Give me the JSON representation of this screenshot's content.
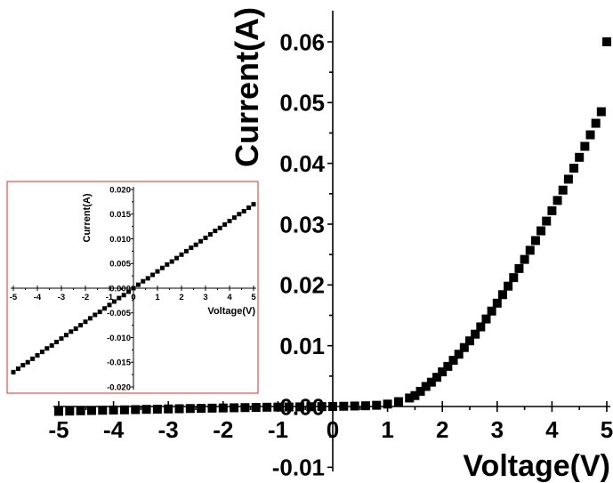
{
  "chart_data": [
    {
      "id": "main",
      "type": "scatter",
      "xlabel": "Voltage(V)",
      "ylabel": "Current(A)",
      "xlim": [
        -5,
        5
      ],
      "ylim": [
        -0.01,
        0.065
      ],
      "xticks": [
        -5,
        -4,
        -3,
        -2,
        -1,
        0,
        1,
        2,
        3,
        4,
        5
      ],
      "xtick_labels": [
        "-5",
        "-4",
        "-3",
        "-2",
        "-1",
        "0",
        "1",
        "2",
        "3",
        "4",
        "5"
      ],
      "yticks": [
        -0.01,
        0.0,
        0.01,
        0.02,
        0.03,
        0.04,
        0.05,
        0.06
      ],
      "ytick_labels": [
        "-0.01",
        "0.00",
        "0.01",
        "0.02",
        "0.03",
        "0.04",
        "0.05",
        "0.06"
      ],
      "marker": "square",
      "marker_color": "#000000",
      "grid": false,
      "series": [
        {
          "x": [
            -5.0,
            -4.8,
            -4.6,
            -4.4,
            -4.2,
            -4.0,
            -3.8,
            -3.6,
            -3.4,
            -3.2,
            -3.0,
            -2.8,
            -2.6,
            -2.4,
            -2.2,
            -2.0,
            -1.8,
            -1.6,
            -1.4,
            -1.2,
            -1.0,
            -0.8,
            -0.6,
            -0.4,
            -0.2,
            0.0,
            0.2,
            0.4,
            0.6,
            0.8,
            1.0,
            1.2,
            1.4,
            1.5,
            1.6,
            1.7,
            1.8,
            1.9,
            2.0,
            2.1,
            2.2,
            2.3,
            2.4,
            2.5,
            2.6,
            2.7,
            2.8,
            2.9,
            3.0,
            3.1,
            3.2,
            3.3,
            3.4,
            3.5,
            3.6,
            3.7,
            3.8,
            3.9,
            4.0,
            4.1,
            4.2,
            4.3,
            4.4,
            4.5,
            4.6,
            4.7,
            4.8,
            4.9,
            5.0
          ],
          "y": [
            -0.0008,
            -0.00075,
            -0.0007,
            -0.00066,
            -0.00062,
            -0.00058,
            -0.00055,
            -0.00051,
            -0.00047,
            -0.00044,
            -0.0004,
            -0.00037,
            -0.00033,
            -0.0003,
            -0.00027,
            -0.00024,
            -0.00021,
            -0.00018,
            -0.00015,
            -0.00012,
            -0.0001,
            -8e-05,
            -6e-05,
            -4e-05,
            -2e-05,
            0.0,
            4e-05,
            8e-05,
            0.00012,
            0.0002,
            0.0004,
            0.0008,
            0.0014,
            0.0018,
            0.0025,
            0.0033,
            0.004,
            0.0048,
            0.0057,
            0.0066,
            0.0076,
            0.0086,
            0.0097,
            0.0108,
            0.0119,
            0.0131,
            0.0144,
            0.0157,
            0.017,
            0.0184,
            0.0198,
            0.0212,
            0.0227,
            0.0242,
            0.0257,
            0.0273,
            0.0289,
            0.0305,
            0.0322,
            0.0339,
            0.0356,
            0.0374,
            0.0392,
            0.041,
            0.0428,
            0.0447,
            0.0466,
            0.0485,
            0.06
          ]
        }
      ]
    },
    {
      "id": "inset",
      "type": "scatter",
      "xlabel": "Voltage(V)",
      "ylabel": "Current(A)",
      "xlim": [
        -5,
        5
      ],
      "ylim": [
        -0.02,
        0.02
      ],
      "xticks": [
        -5,
        -4,
        -3,
        -2,
        -1,
        0,
        1,
        2,
        3,
        4,
        5
      ],
      "xtick_labels": [
        "-5",
        "-4",
        "-3",
        "-2",
        "-1",
        "0",
        "1",
        "2",
        "3",
        "4",
        "5"
      ],
      "yticks": [
        -0.02,
        -0.015,
        -0.01,
        -0.005,
        0.0,
        0.005,
        0.01,
        0.015,
        0.02
      ],
      "ytick_labels": [
        "-0.020",
        "-0.015",
        "-0.010",
        "-0.005",
        "0.000",
        "0.005",
        "0.010",
        "0.015",
        "0.020"
      ],
      "marker": "square",
      "marker_color": "#000000",
      "frame_color": "#e05050",
      "grid": false,
      "series": [
        {
          "x": [
            -5.0,
            -4.8,
            -4.6,
            -4.4,
            -4.2,
            -4.0,
            -3.8,
            -3.6,
            -3.4,
            -3.2,
            -3.0,
            -2.8,
            -2.6,
            -2.4,
            -2.2,
            -2.0,
            -1.8,
            -1.6,
            -1.4,
            -1.2,
            -1.0,
            -0.8,
            -0.6,
            -0.4,
            -0.2,
            0.0,
            0.2,
            0.4,
            0.6,
            0.8,
            1.0,
            1.2,
            1.4,
            1.6,
            1.8,
            2.0,
            2.2,
            2.4,
            2.6,
            2.8,
            3.0,
            3.2,
            3.4,
            3.6,
            3.8,
            4.0,
            4.2,
            4.4,
            4.6,
            4.8,
            5.0
          ],
          "y": [
            -0.017,
            -0.0163,
            -0.0156,
            -0.015,
            -0.0143,
            -0.0136,
            -0.0129,
            -0.0122,
            -0.0116,
            -0.0109,
            -0.0102,
            -0.0095,
            -0.0088,
            -0.0082,
            -0.0075,
            -0.0068,
            -0.0061,
            -0.0054,
            -0.0048,
            -0.0041,
            -0.0034,
            -0.0027,
            -0.002,
            -0.0014,
            -0.0007,
            0.0,
            0.0007,
            0.0014,
            0.002,
            0.0027,
            0.0034,
            0.0041,
            0.0048,
            0.0054,
            0.0061,
            0.0068,
            0.0075,
            0.0082,
            0.0088,
            0.0095,
            0.0102,
            0.0109,
            0.0116,
            0.0122,
            0.0129,
            0.0136,
            0.0143,
            0.015,
            0.0156,
            0.0163,
            0.017
          ]
        }
      ]
    }
  ]
}
